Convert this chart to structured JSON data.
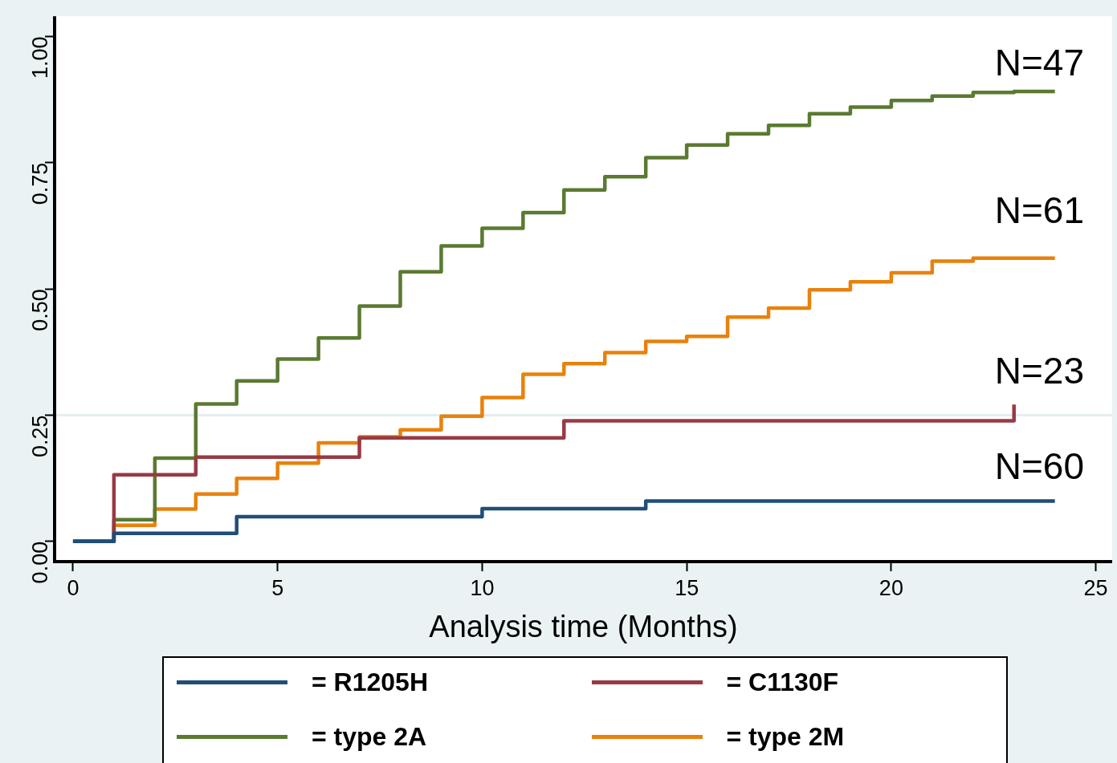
{
  "chart_data": {
    "type": "step",
    "xlabel": "Analysis time (Months)",
    "xlim": [
      -0.45,
      25.4
    ],
    "xticks": [
      0,
      5,
      10,
      15,
      20,
      25
    ],
    "ylim": [
      -0.04,
      1.04
    ],
    "yticks": [
      {
        "value": 0,
        "label": "0.00"
      },
      {
        "value": 0.25,
        "label": "0.25"
      },
      {
        "value": 0.5,
        "label": "0.50"
      },
      {
        "value": 0.75,
        "label": "0.75"
      },
      {
        "value": 1,
        "label": "1.00"
      }
    ],
    "grid": false,
    "legend": "bottom",
    "line_style": "solid",
    "marker": "none",
    "ref_lines": [
      {
        "axis": "y",
        "value": 0.25,
        "label": null,
        "color": "#e4eef0"
      }
    ],
    "series": [
      {
        "name": "= R1205H",
        "color": "#1f4e79",
        "x": [
          0,
          1,
          4,
          10,
          14,
          24
        ],
        "values": [
          0,
          0.016,
          0.049,
          0.065,
          0.08,
          0.08
        ]
      },
      {
        "name": "= C1130F",
        "color": "#983a44",
        "x": [
          0,
          1,
          3,
          7,
          12,
          23
        ],
        "values": [
          0,
          0.132,
          0.167,
          0.205,
          0.239,
          0.271
        ]
      },
      {
        "name": "= type 2A",
        "color": "#5a7a31",
        "x": [
          0,
          1,
          2,
          3,
          4,
          5,
          6,
          7,
          8,
          9,
          10,
          11,
          12,
          13,
          14,
          15,
          16,
          17,
          18,
          19,
          20,
          21,
          22,
          23,
          24
        ],
        "values": [
          0,
          0.043,
          0.165,
          0.272,
          0.318,
          0.361,
          0.403,
          0.466,
          0.534,
          0.585,
          0.62,
          0.651,
          0.696,
          0.722,
          0.76,
          0.785,
          0.807,
          0.824,
          0.847,
          0.86,
          0.873,
          0.882,
          0.889,
          0.891,
          0.891
        ]
      },
      {
        "name": "= type 2M",
        "color": "#e8820c",
        "x": [
          0,
          1,
          2,
          3,
          4,
          5,
          6,
          7,
          8,
          9,
          10,
          11,
          12,
          13,
          14,
          15,
          16,
          17,
          18,
          19,
          20,
          21,
          22,
          24
        ],
        "values": [
          0,
          0.032,
          0.064,
          0.094,
          0.125,
          0.155,
          0.195,
          0.207,
          0.221,
          0.248,
          0.285,
          0.331,
          0.352,
          0.374,
          0.396,
          0.406,
          0.444,
          0.462,
          0.498,
          0.514,
          0.532,
          0.555,
          0.561,
          0.561
        ]
      }
    ],
    "annotations": [
      "N=47",
      "N=61",
      "N=23",
      "N=60"
    ]
  }
}
